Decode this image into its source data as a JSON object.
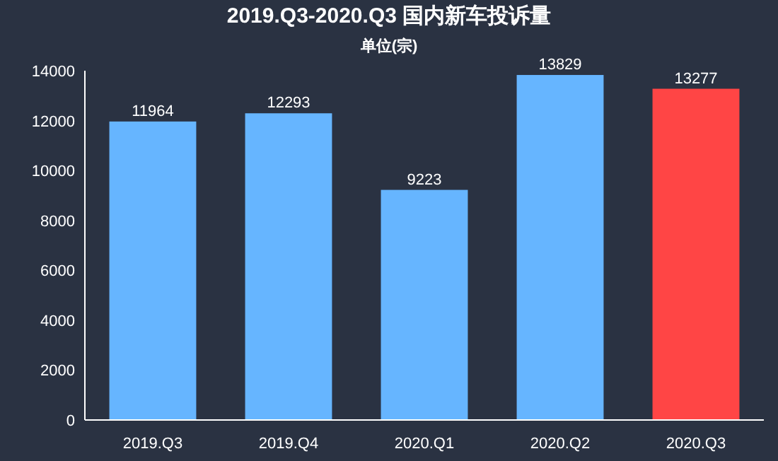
{
  "chart_data": {
    "type": "bar",
    "title": "2019.Q3-2020.Q3 国内新车投诉量",
    "subtitle": "单位(宗)",
    "categories": [
      "2019.Q3",
      "2019.Q4",
      "2020.Q1",
      "2020.Q2",
      "2020.Q3"
    ],
    "values": [
      11964,
      12293,
      9223,
      13829,
      13277
    ],
    "colors": [
      "#66b5ff",
      "#66b5ff",
      "#66b5ff",
      "#66b5ff",
      "#ff4545"
    ],
    "ylim": [
      0,
      14000
    ],
    "yticks": [
      0,
      2000,
      4000,
      6000,
      8000,
      10000,
      12000,
      14000
    ],
    "data_labels": true
  }
}
